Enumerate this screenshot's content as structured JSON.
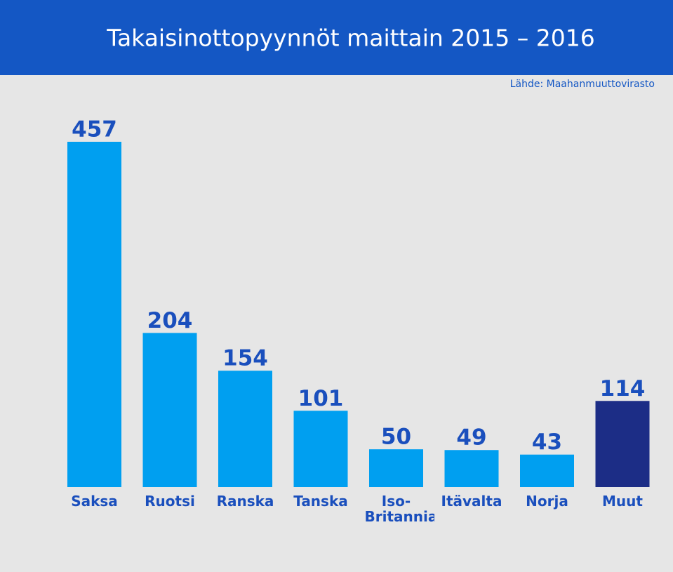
{
  "chart_data": {
    "type": "bar",
    "title": "Takaisinottopyynnöt maittain 2015 – 2016",
    "source": "Lähde: Maahanmuuttovirasto",
    "categories": [
      "Saksa",
      "Ruotsi",
      "Ranska",
      "Tanska",
      "Iso-Britannia",
      "Itävalta",
      "Norja",
      "Muut"
    ],
    "values": [
      457,
      204,
      154,
      101,
      50,
      49,
      43,
      114
    ],
    "colors": [
      "#009ff0",
      "#009ff0",
      "#009ff0",
      "#009ff0",
      "#009ff0",
      "#009ff0",
      "#009ff0",
      "#1c2d86"
    ]
  }
}
